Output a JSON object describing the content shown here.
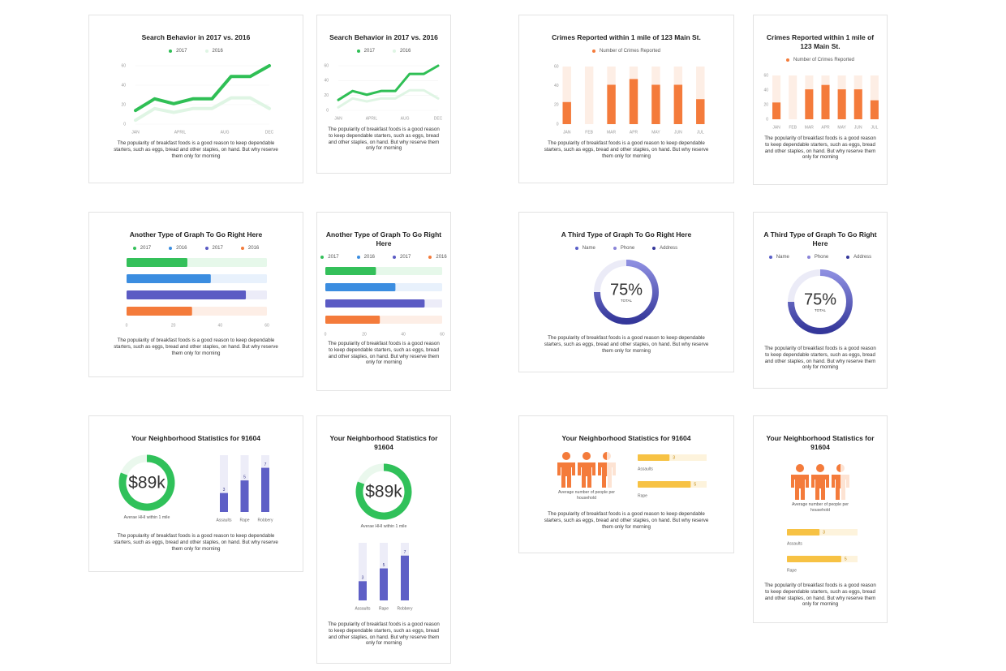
{
  "chart_data": [
    {
      "type": "line",
      "title": "Search Behavior in 2017 vs. 2016",
      "x": [
        0,
        1,
        2,
        3,
        4,
        5,
        6,
        7
      ],
      "xlim": [
        0,
        7
      ],
      "xticks": [
        {
          "value": 0,
          "label": "JAN"
        },
        {
          "value": 2.33,
          "label": "APRIL"
        },
        {
          "value": 4.67,
          "label": "AUG"
        },
        {
          "value": 7,
          "label": "DEC"
        }
      ],
      "ylim": [
        0,
        60
      ],
      "yticks": [
        0,
        20,
        40,
        60
      ],
      "grid": true,
      "series": [
        {
          "name": "2017",
          "color": "#2fbf55",
          "values": [
            14,
            26,
            21,
            26,
            26,
            49,
            49,
            60
          ]
        },
        {
          "name": "2016",
          "color": "#dff5e4",
          "values": [
            4,
            16,
            12,
            16,
            16,
            27,
            27,
            16
          ]
        }
      ],
      "description": "The popularity of breakfast foods is a good reason to keep dependable starters, such as eggs, bread and other staples, on hand. But why reserve them only for morning"
    },
    {
      "type": "line",
      "title": "Search Behavior in 2017 vs. 2016",
      "x": [
        0,
        1,
        2,
        3,
        4,
        5,
        6,
        7
      ],
      "xlim": [
        0,
        7
      ],
      "xticks": [
        {
          "value": 0,
          "label": "JAN"
        },
        {
          "value": 2.33,
          "label": "APRIL"
        },
        {
          "value": 4.67,
          "label": "AUG"
        },
        {
          "value": 7,
          "label": "DEC"
        }
      ],
      "ylim": [
        0,
        60
      ],
      "yticks": [
        0,
        20,
        40,
        60
      ],
      "grid": true,
      "series": [
        {
          "name": "2017",
          "color": "#2fbf55",
          "values": [
            14,
            26,
            21,
            26,
            26,
            49,
            49,
            60
          ]
        },
        {
          "name": "2016",
          "color": "#dff5e4",
          "values": [
            4,
            16,
            12,
            16,
            16,
            27,
            27,
            16
          ]
        }
      ],
      "description": "The popularity of breakfast foods is a good reason to keep dependable starters, such as eggs, bread and other staples, on hand. But why reserve them only for morning"
    },
    {
      "type": "bar",
      "title": "Crimes Reported within 1 mile of 123 Main St.",
      "categories": [
        "JAN",
        "FEB",
        "MAR",
        "APR",
        "MAY",
        "JUN",
        "JUL"
      ],
      "ylim": [
        0,
        60
      ],
      "yticks": [
        0,
        20,
        40,
        60
      ],
      "track_color": "#fdeee5",
      "series": [
        {
          "name": "Number of Crimes Reported",
          "color": "#f47b3b",
          "values": [
            23,
            0,
            41,
            47,
            41,
            41,
            26
          ]
        }
      ],
      "description": "The popularity of breakfast foods is a good reason to keep dependable starters, such as eggs, bread and other staples, on hand. But why reserve them only for morning"
    },
    {
      "type": "bar",
      "title": "Crimes Reported within 1 mile of 123 Main St.",
      "categories": [
        "JAN",
        "FEB",
        "MAR",
        "APR",
        "MAY",
        "JUN",
        "JUL"
      ],
      "ylim": [
        0,
        60
      ],
      "yticks": [
        0,
        20,
        40,
        60
      ],
      "track_color": "#fdeee5",
      "series": [
        {
          "name": "Number of Crimes Reported",
          "color": "#f47b3b",
          "values": [
            23,
            0,
            41,
            47,
            41,
            41,
            26
          ]
        }
      ],
      "description": "The popularity of breakfast foods is a good reason to keep dependable starters, such as eggs, bread and other staples, on hand. But why reserve them only for morning"
    },
    {
      "type": "hbar",
      "title": "Another Type of Graph To Go Right Here",
      "xlim": [
        0,
        60
      ],
      "xticks": [
        0,
        20,
        40,
        60
      ],
      "series": [
        {
          "name": "2017",
          "color": "#34c05a",
          "track_color": "#e6f8ea",
          "values": [
            26
          ]
        },
        {
          "name": "2016",
          "color": "#3b8de0",
          "track_color": "#e8f1fc",
          "values": [
            36
          ]
        },
        {
          "name": "2017",
          "color": "#5b5bc4",
          "track_color": "#ececf8",
          "values": [
            51
          ]
        },
        {
          "name": "2016",
          "color": "#f47b3b",
          "track_color": "#fdeee6",
          "values": [
            28
          ]
        }
      ],
      "description": "The popularity of breakfast foods is a good reason to keep dependable starters, such as eggs, bread and other staples, on hand. But why reserve them only for morning"
    },
    {
      "type": "hbar",
      "title": "Another Type of Graph To Go Right Here",
      "xlim": [
        0,
        60
      ],
      "xticks": [
        0,
        20,
        40,
        60
      ],
      "series": [
        {
          "name": "2017",
          "color": "#34c05a",
          "track_color": "#e6f8ea",
          "values": [
            26
          ]
        },
        {
          "name": "2016",
          "color": "#3b8de0",
          "track_color": "#e8f1fc",
          "values": [
            36
          ]
        },
        {
          "name": "2017",
          "color": "#5b5bc4",
          "track_color": "#ececf8",
          "values": [
            51
          ]
        },
        {
          "name": "2016",
          "color": "#f47b3b",
          "track_color": "#fdeee6",
          "values": [
            28
          ]
        }
      ],
      "description": "The popularity of breakfast foods is a good reason to keep dependable starters, such as eggs, bread and other staples, on hand. But why reserve them only for morning"
    },
    {
      "type": "donut",
      "title": "A Third Type of Graph To Go Right Here",
      "legend": [
        {
          "name": "Name",
          "color": "#5a5fc8"
        },
        {
          "name": "Phone",
          "color": "#8a84d8"
        },
        {
          "name": "Address",
          "color": "#34379a"
        }
      ],
      "value": 75,
      "value_label": "75%",
      "label": "TOTAL",
      "range": [
        0,
        100
      ],
      "colors": [
        "#34379a",
        "#8d8ee0"
      ],
      "track_color": "#ebebf7",
      "description": "The popularity of breakfast foods is a good reason to keep dependable starters, such as eggs, bread and other staples, on hand. But why reserve them only for morning"
    },
    {
      "type": "donut",
      "title": "A Third Type of Graph To Go Right Here",
      "legend": [
        {
          "name": "Name",
          "color": "#5a5fc8"
        },
        {
          "name": "Phone",
          "color": "#8a84d8"
        },
        {
          "name": "Address",
          "color": "#34379a"
        }
      ],
      "value": 75,
      "value_label": "75%",
      "label": "TOTAL",
      "range": [
        0,
        100
      ],
      "colors": [
        "#34379a",
        "#8d8ee0"
      ],
      "track_color": "#ebebf7",
      "description": "The popularity of breakfast foods is a good reason to keep dependable starters, such as eggs, bread and other staples, on hand. But why reserve them only for morning"
    },
    {
      "type": "stats",
      "title": "Your Neighborhood Statistics for 91604",
      "ring": {
        "value": 89000,
        "value_label": "$89k",
        "range": [
          0,
          110000
        ],
        "label": "Averae HHI within 1 mile",
        "color": "#30c15a",
        "track_color": "#eaf8ed"
      },
      "categories": [
        "Assaults",
        "Rape",
        "Robbery"
      ],
      "values": [
        3,
        5,
        7
      ],
      "ylim": [
        0,
        9
      ],
      "color": "#5e5fc6",
      "track_color": "#ededf8",
      "description": "The popularity of breakfast foods is a good reason to keep dependable starters, such as eggs, bread and other staples, on hand. But why reserve them only for morning"
    },
    {
      "type": "stats",
      "title": "Your Neighborhood Statistics for 91604",
      "ring": {
        "value": 89000,
        "value_label": "$89k",
        "range": [
          0,
          110000
        ],
        "label": "Averae HHI within 1 mile",
        "color": "#30c15a",
        "track_color": "#eaf8ed"
      },
      "categories": [
        "Assaults",
        "Rape",
        "Robbery"
      ],
      "values": [
        3,
        5,
        7
      ],
      "ylim": [
        0,
        9
      ],
      "color": "#5e5fc6",
      "track_color": "#ededf8",
      "description": "The popularity of breakfast foods is a good reason to keep dependable starters, such as eggs, bread and other staples, on hand. But why reserve them only for morning"
    },
    {
      "type": "people",
      "title": "Your Neighborhood Statistics for 91604",
      "people": {
        "value": 2.5,
        "label": "Average number of people per household",
        "color": "#f47b3b",
        "track_color": "#fde3d3"
      },
      "categories": [
        "Assaults",
        "Rape"
      ],
      "values": [
        3,
        5
      ],
      "xlim": [
        0,
        6.5
      ],
      "color": "#f7c244",
      "track_color": "#fdf3dc",
      "description": "The popularity of breakfast foods is a good reason to keep dependable starters, such as eggs, bread and other staples, on hand. But why reserve them only for morning"
    },
    {
      "type": "people",
      "title": "Your Neighborhood Statistics for 91604",
      "people": {
        "value": 2.5,
        "label": "Average number of people per household",
        "color": "#f47b3b",
        "track_color": "#fde3d3"
      },
      "categories": [
        "Assaults",
        "Rape"
      ],
      "values": [
        3,
        5
      ],
      "xlim": [
        0,
        6.5
      ],
      "color": "#f7c244",
      "track_color": "#fdf3dc",
      "description": "The popularity of breakfast foods is a good reason to keep dependable starters, such as eggs, bread and other staples, on hand. But why reserve them only for morning"
    }
  ]
}
